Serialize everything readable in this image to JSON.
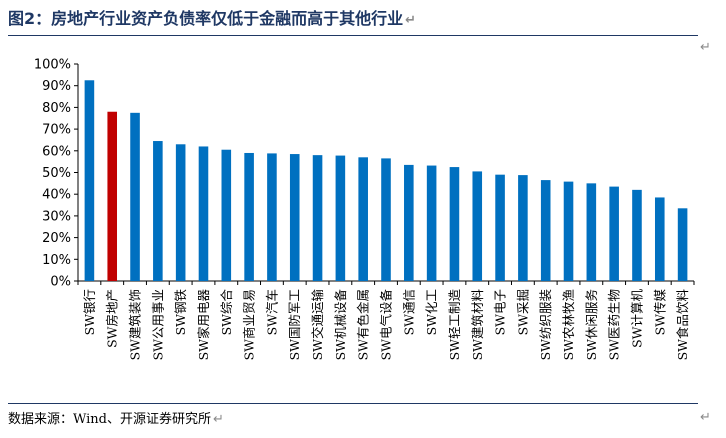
{
  "header": {
    "title": "图2：房地产行业资产负债率仅低于金融而高于其他行业",
    "return_mark": "↵"
  },
  "footer": {
    "source": "数据来源：Wind、开源证券研究所"
  },
  "colors": {
    "bar": "#0070c0",
    "highlight": "#c00000",
    "rule": "#1f3864"
  },
  "chart_data": {
    "type": "bar",
    "categories": [
      "SW银行",
      "SW房地产",
      "SW建筑装饰",
      "SW公用事业",
      "SW钢铁",
      "SW家用电器",
      "SW综合",
      "SW商业贸易",
      "SW汽车",
      "SW国防军工",
      "SW交通运输",
      "SW机械设备",
      "SW有色金属",
      "SW电气设备",
      "SW通信",
      "SW化工",
      "SW轻工制造",
      "SW建筑材料",
      "SW电子",
      "SW采掘",
      "SW纺织服装",
      "SW农林牧渔",
      "SW休闲服务",
      "SW医药生物",
      "SW计算机",
      "SW传媒",
      "SW食品饮料"
    ],
    "values": [
      92.5,
      78,
      77.5,
      64.5,
      63,
      62,
      60.5,
      59,
      58.8,
      58.5,
      58,
      57.8,
      57,
      56.5,
      53.5,
      53.2,
      52.5,
      50.5,
      49,
      48.8,
      46.5,
      45.8,
      45,
      43.5,
      42,
      38.5,
      33.5
    ],
    "highlight_category": "SW房地产",
    "yticks": [
      "0%",
      "10%",
      "20%",
      "30%",
      "40%",
      "50%",
      "60%",
      "70%",
      "80%",
      "90%",
      "100%"
    ],
    "ylim": [
      0,
      100
    ],
    "title": "",
    "xlabel": "",
    "ylabel": "",
    "grid": false,
    "legend": "none"
  }
}
